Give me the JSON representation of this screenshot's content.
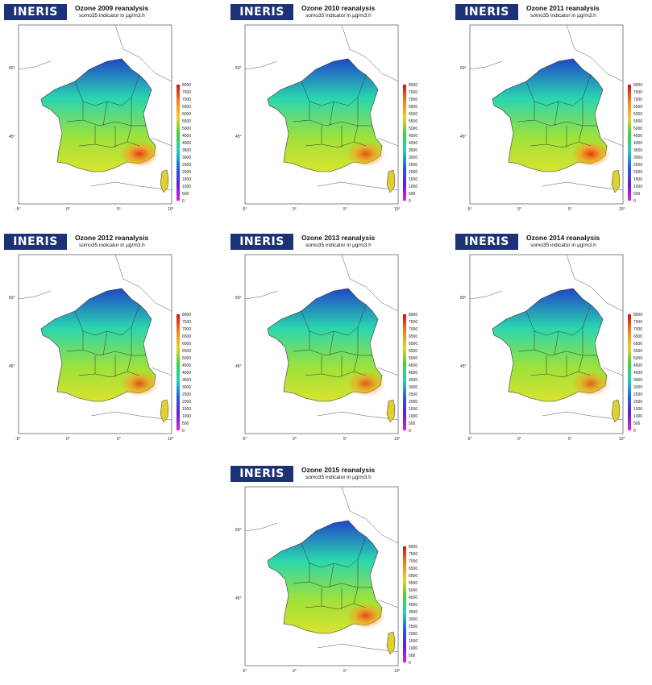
{
  "logo_text": "INERIS",
  "subtitle": "somo35 indicator in µg/m3.h",
  "panels": [
    {
      "title": "Ozone 2009 reanalysis",
      "hotspot": 1.0
    },
    {
      "title": "Ozone 2010 reanalysis",
      "hotspot": 0.85
    },
    {
      "title": "Ozone 2011 reanalysis",
      "hotspot": 1.0
    },
    {
      "title": "Ozone 2012 reanalysis",
      "hotspot": 0.85
    },
    {
      "title": "Ozone 2013 reanalysis",
      "hotspot": 0.8
    },
    {
      "title": "Ozone 2014 reanalysis",
      "hotspot": 0.75
    },
    {
      "title": "Ozone 2015 reanalysis",
      "hotspot": 0.9
    }
  ],
  "colorbar_labels": [
    "8000",
    "7500",
    "7000",
    "6500",
    "6000",
    "5500",
    "5000",
    "4500",
    "4000",
    "3500",
    "3000",
    "2500",
    "2000",
    "1500",
    "1000",
    "500",
    "0"
  ],
  "lon_ticks": [
    "-5°",
    "0°",
    "5°",
    "10°"
  ],
  "lat_ticks": [
    "50°",
    "45°"
  ],
  "colors": {
    "logo_bg": "#1c3277",
    "north": "#2046c8",
    "center": "#2ad6b0",
    "south": "#9ee23a",
    "hot": "#e63a12",
    "border": "#333333"
  }
}
